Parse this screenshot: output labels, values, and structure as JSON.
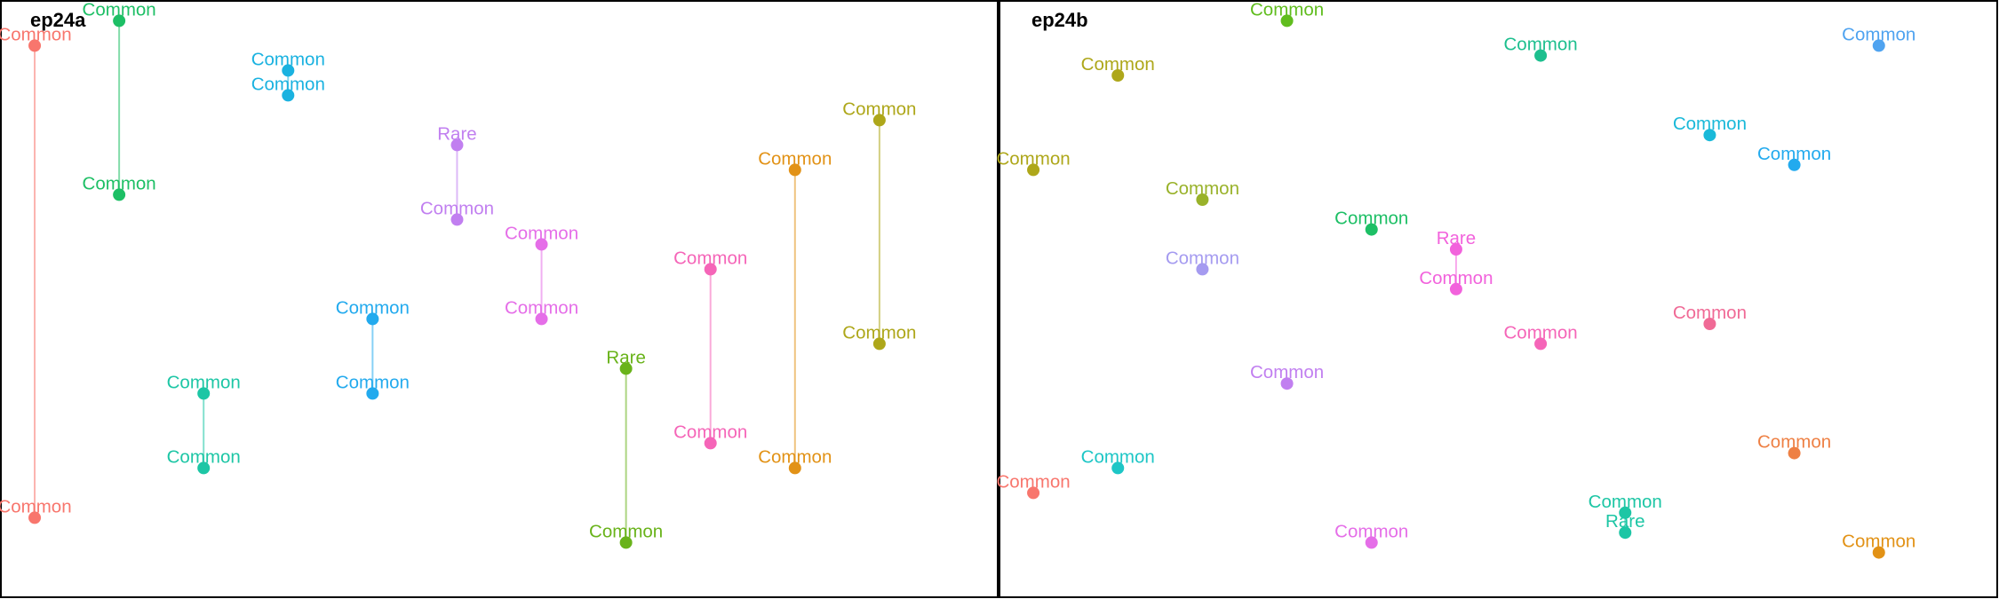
{
  "chart_data": [
    {
      "type": "scatter",
      "title": "ep24a",
      "grid": false,
      "xlim": [
        0.6,
        12.4
      ],
      "ylim": [
        0.4,
        12.4
      ],
      "points": [
        {
          "x": 1,
          "y": 11.5,
          "label": "Common",
          "color": "#F8766D"
        },
        {
          "x": 1,
          "y": 2.0,
          "label": "Common",
          "color": "#F8766D"
        },
        {
          "x": 2,
          "y": 12.0,
          "label": "Common",
          "color": "#1DBF65"
        },
        {
          "x": 2,
          "y": 8.5,
          "label": "Common",
          "color": "#1DBF65"
        },
        {
          "x": 3,
          "y": 4.5,
          "label": "Common",
          "color": "#1DC6A5"
        },
        {
          "x": 3,
          "y": 3.0,
          "label": "Common",
          "color": "#1DC6A5"
        },
        {
          "x": 4,
          "y": 11.0,
          "label": "Common",
          "color": "#1AB2E0"
        },
        {
          "x": 4,
          "y": 10.5,
          "label": "Common",
          "color": "#1AB2E0"
        },
        {
          "x": 5,
          "y": 6.0,
          "label": "Common",
          "color": "#22AAEE"
        },
        {
          "x": 5,
          "y": 4.5,
          "label": "Common",
          "color": "#22AAEE"
        },
        {
          "x": 6,
          "y": 9.5,
          "label": "Rare",
          "color": "#C17FF0"
        },
        {
          "x": 6,
          "y": 8.0,
          "label": "Common",
          "color": "#C17FF0"
        },
        {
          "x": 7,
          "y": 7.5,
          "label": "Common",
          "color": "#E56EE8"
        },
        {
          "x": 7,
          "y": 6.0,
          "label": "Common",
          "color": "#E56EE8"
        },
        {
          "x": 8,
          "y": 5.0,
          "label": "Rare",
          "color": "#69B31A"
        },
        {
          "x": 8,
          "y": 1.5,
          "label": "Common",
          "color": "#69B31A"
        },
        {
          "x": 9,
          "y": 7.0,
          "label": "Common",
          "color": "#F565B8"
        },
        {
          "x": 9,
          "y": 3.5,
          "label": "Common",
          "color": "#F565B8"
        },
        {
          "x": 10,
          "y": 9.0,
          "label": "Common",
          "color": "#E29216"
        },
        {
          "x": 10,
          "y": 3.0,
          "label": "Common",
          "color": "#E29216"
        },
        {
          "x": 11,
          "y": 10.0,
          "label": "Common",
          "color": "#AEA71A"
        },
        {
          "x": 11,
          "y": 5.5,
          "label": "Common",
          "color": "#AEA71A"
        }
      ],
      "segments": [
        [
          0,
          1
        ],
        [
          2,
          3
        ],
        [
          4,
          5
        ],
        [
          6,
          7
        ],
        [
          8,
          9
        ],
        [
          10,
          11
        ],
        [
          12,
          13
        ],
        [
          14,
          15
        ],
        [
          16,
          17
        ],
        [
          18,
          19
        ],
        [
          20,
          21
        ]
      ]
    },
    {
      "type": "scatter",
      "title": "ep24b",
      "grid": false,
      "xlim": [
        0.6,
        12.4
      ],
      "ylim": [
        0.4,
        12.4
      ],
      "points": [
        {
          "x": 1,
          "y": 9.0,
          "label": "Common",
          "color": "#AEA71A"
        },
        {
          "x": 1,
          "y": 2.5,
          "label": "Common",
          "color": "#F8766D"
        },
        {
          "x": 2,
          "y": 10.9,
          "label": "Common",
          "color": "#AEA71A"
        },
        {
          "x": 2,
          "y": 3.0,
          "label": "Common",
          "color": "#1DC6C6"
        },
        {
          "x": 3,
          "y": 8.4,
          "label": "Common",
          "color": "#99B22A"
        },
        {
          "x": 3,
          "y": 7.0,
          "label": "Common",
          "color": "#A59BF0"
        },
        {
          "x": 4,
          "y": 12.0,
          "label": "Common",
          "color": "#60BD1E"
        },
        {
          "x": 4,
          "y": 4.7,
          "label": "Common",
          "color": "#C17FF0"
        },
        {
          "x": 5,
          "y": 7.8,
          "label": "Common",
          "color": "#1DBF65"
        },
        {
          "x": 5,
          "y": 1.5,
          "label": "Common",
          "color": "#E56EE8"
        },
        {
          "x": 6,
          "y": 7.4,
          "label": "Rare",
          "color": "#F262DC"
        },
        {
          "x": 6,
          "y": 6.6,
          "label": "Common",
          "color": "#F262DC"
        },
        {
          "x": 7,
          "y": 11.3,
          "label": "Common",
          "color": "#1DBF8E"
        },
        {
          "x": 7,
          "y": 5.5,
          "label": "Common",
          "color": "#F565B8"
        },
        {
          "x": 8,
          "y": 2.1,
          "label": "Common",
          "color": "#1DC6A5"
        },
        {
          "x": 8,
          "y": 1.7,
          "label": "Rare",
          "color": "#1DC6A5"
        },
        {
          "x": 9,
          "y": 9.7,
          "label": "Common",
          "color": "#1AB9D9"
        },
        {
          "x": 9,
          "y": 5.9,
          "label": "Common",
          "color": "#F06A96"
        },
        {
          "x": 10,
          "y": 9.1,
          "label": "Common",
          "color": "#22AAEE"
        },
        {
          "x": 10,
          "y": 3.3,
          "label": "Common",
          "color": "#EE8044"
        },
        {
          "x": 11,
          "y": 11.5,
          "label": "Common",
          "color": "#4FA3F0"
        },
        {
          "x": 11,
          "y": 1.3,
          "label": "Common",
          "color": "#E29216"
        }
      ],
      "segments": [
        [
          10,
          11
        ],
        [
          14,
          15
        ]
      ]
    }
  ]
}
